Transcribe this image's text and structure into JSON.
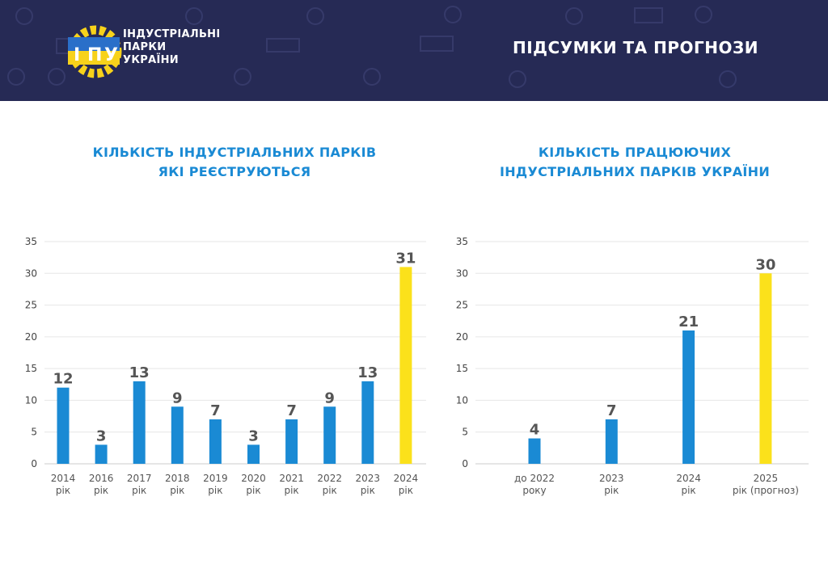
{
  "header": {
    "logo_abbr": [
      "І",
      "П",
      "У"
    ],
    "logo_lines": [
      "ІНДУСТРІАЛЬНІ",
      "ПАРКИ",
      "УКРАЇНИ"
    ],
    "title": "ПІДСУМКИ ТА ПРОГНОЗИ",
    "colors": {
      "bg": "#262a55",
      "text": "#ffffff",
      "ukr_blue": "#2a6fc9",
      "ukr_yellow": "#f7d21b"
    }
  },
  "chart_data": [
    {
      "type": "bar",
      "title": "КІЛЬКІСТЬ ІНДУСТРІАЛЬНИХ ПАРКІВ ЯКІ РЕЄСТРУЮТЬСЯ",
      "title_lines": [
        "КІЛЬКІСТЬ ІНДУСТРІАЛЬНИХ ПАРКІВ",
        "ЯКІ РЕЄСТРУЮТЬСЯ"
      ],
      "categories": [
        [
          "2014",
          "рік"
        ],
        [
          "2016",
          "рік"
        ],
        [
          "2017",
          "рік"
        ],
        [
          "2018",
          "рік"
        ],
        [
          "2019",
          "рік"
        ],
        [
          "2020",
          "рік"
        ],
        [
          "2021",
          "рік"
        ],
        [
          "2022",
          "рік"
        ],
        [
          "2023",
          "рік"
        ],
        [
          "2024",
          "рік"
        ]
      ],
      "values": [
        12,
        3,
        13,
        9,
        7,
        3,
        7,
        9,
        13,
        31
      ],
      "bar_colors": [
        "#1a8ad4",
        "#1a8ad4",
        "#1a8ad4",
        "#1a8ad4",
        "#1a8ad4",
        "#1a8ad4",
        "#1a8ad4",
        "#1a8ad4",
        "#1a8ad4",
        "#fbe11b"
      ],
      "yticks": [
        "0",
        "5",
        "10",
        "15",
        "20",
        "25",
        "30",
        "35"
      ],
      "ylim": [
        0,
        35
      ],
      "grid": true
    },
    {
      "type": "bar",
      "title": "КІЛЬКІСТЬ ПРАЦЮЮЧИХ ІНДУСТРІАЛЬНИХ ПАРКІВ УКРАЇНИ",
      "title_lines": [
        "КІЛЬКІСТЬ ПРАЦЮЮЧИХ",
        "ІНДУСТРІАЛЬНИХ ПАРКІВ УКРАЇНИ"
      ],
      "categories": [
        [
          "до 2022",
          "року"
        ],
        [
          "2023",
          "рік"
        ],
        [
          "2024",
          "рік"
        ],
        [
          "2025",
          "рік (прогноз)"
        ]
      ],
      "values": [
        4,
        7,
        21,
        30
      ],
      "bar_colors": [
        "#1a8ad4",
        "#1a8ad4",
        "#1a8ad4",
        "#fbe11b"
      ],
      "yticks": [
        "0",
        "5",
        "10",
        "15",
        "20",
        "25",
        "30",
        "35"
      ],
      "ylim": [
        0,
        35
      ],
      "grid": true
    }
  ]
}
